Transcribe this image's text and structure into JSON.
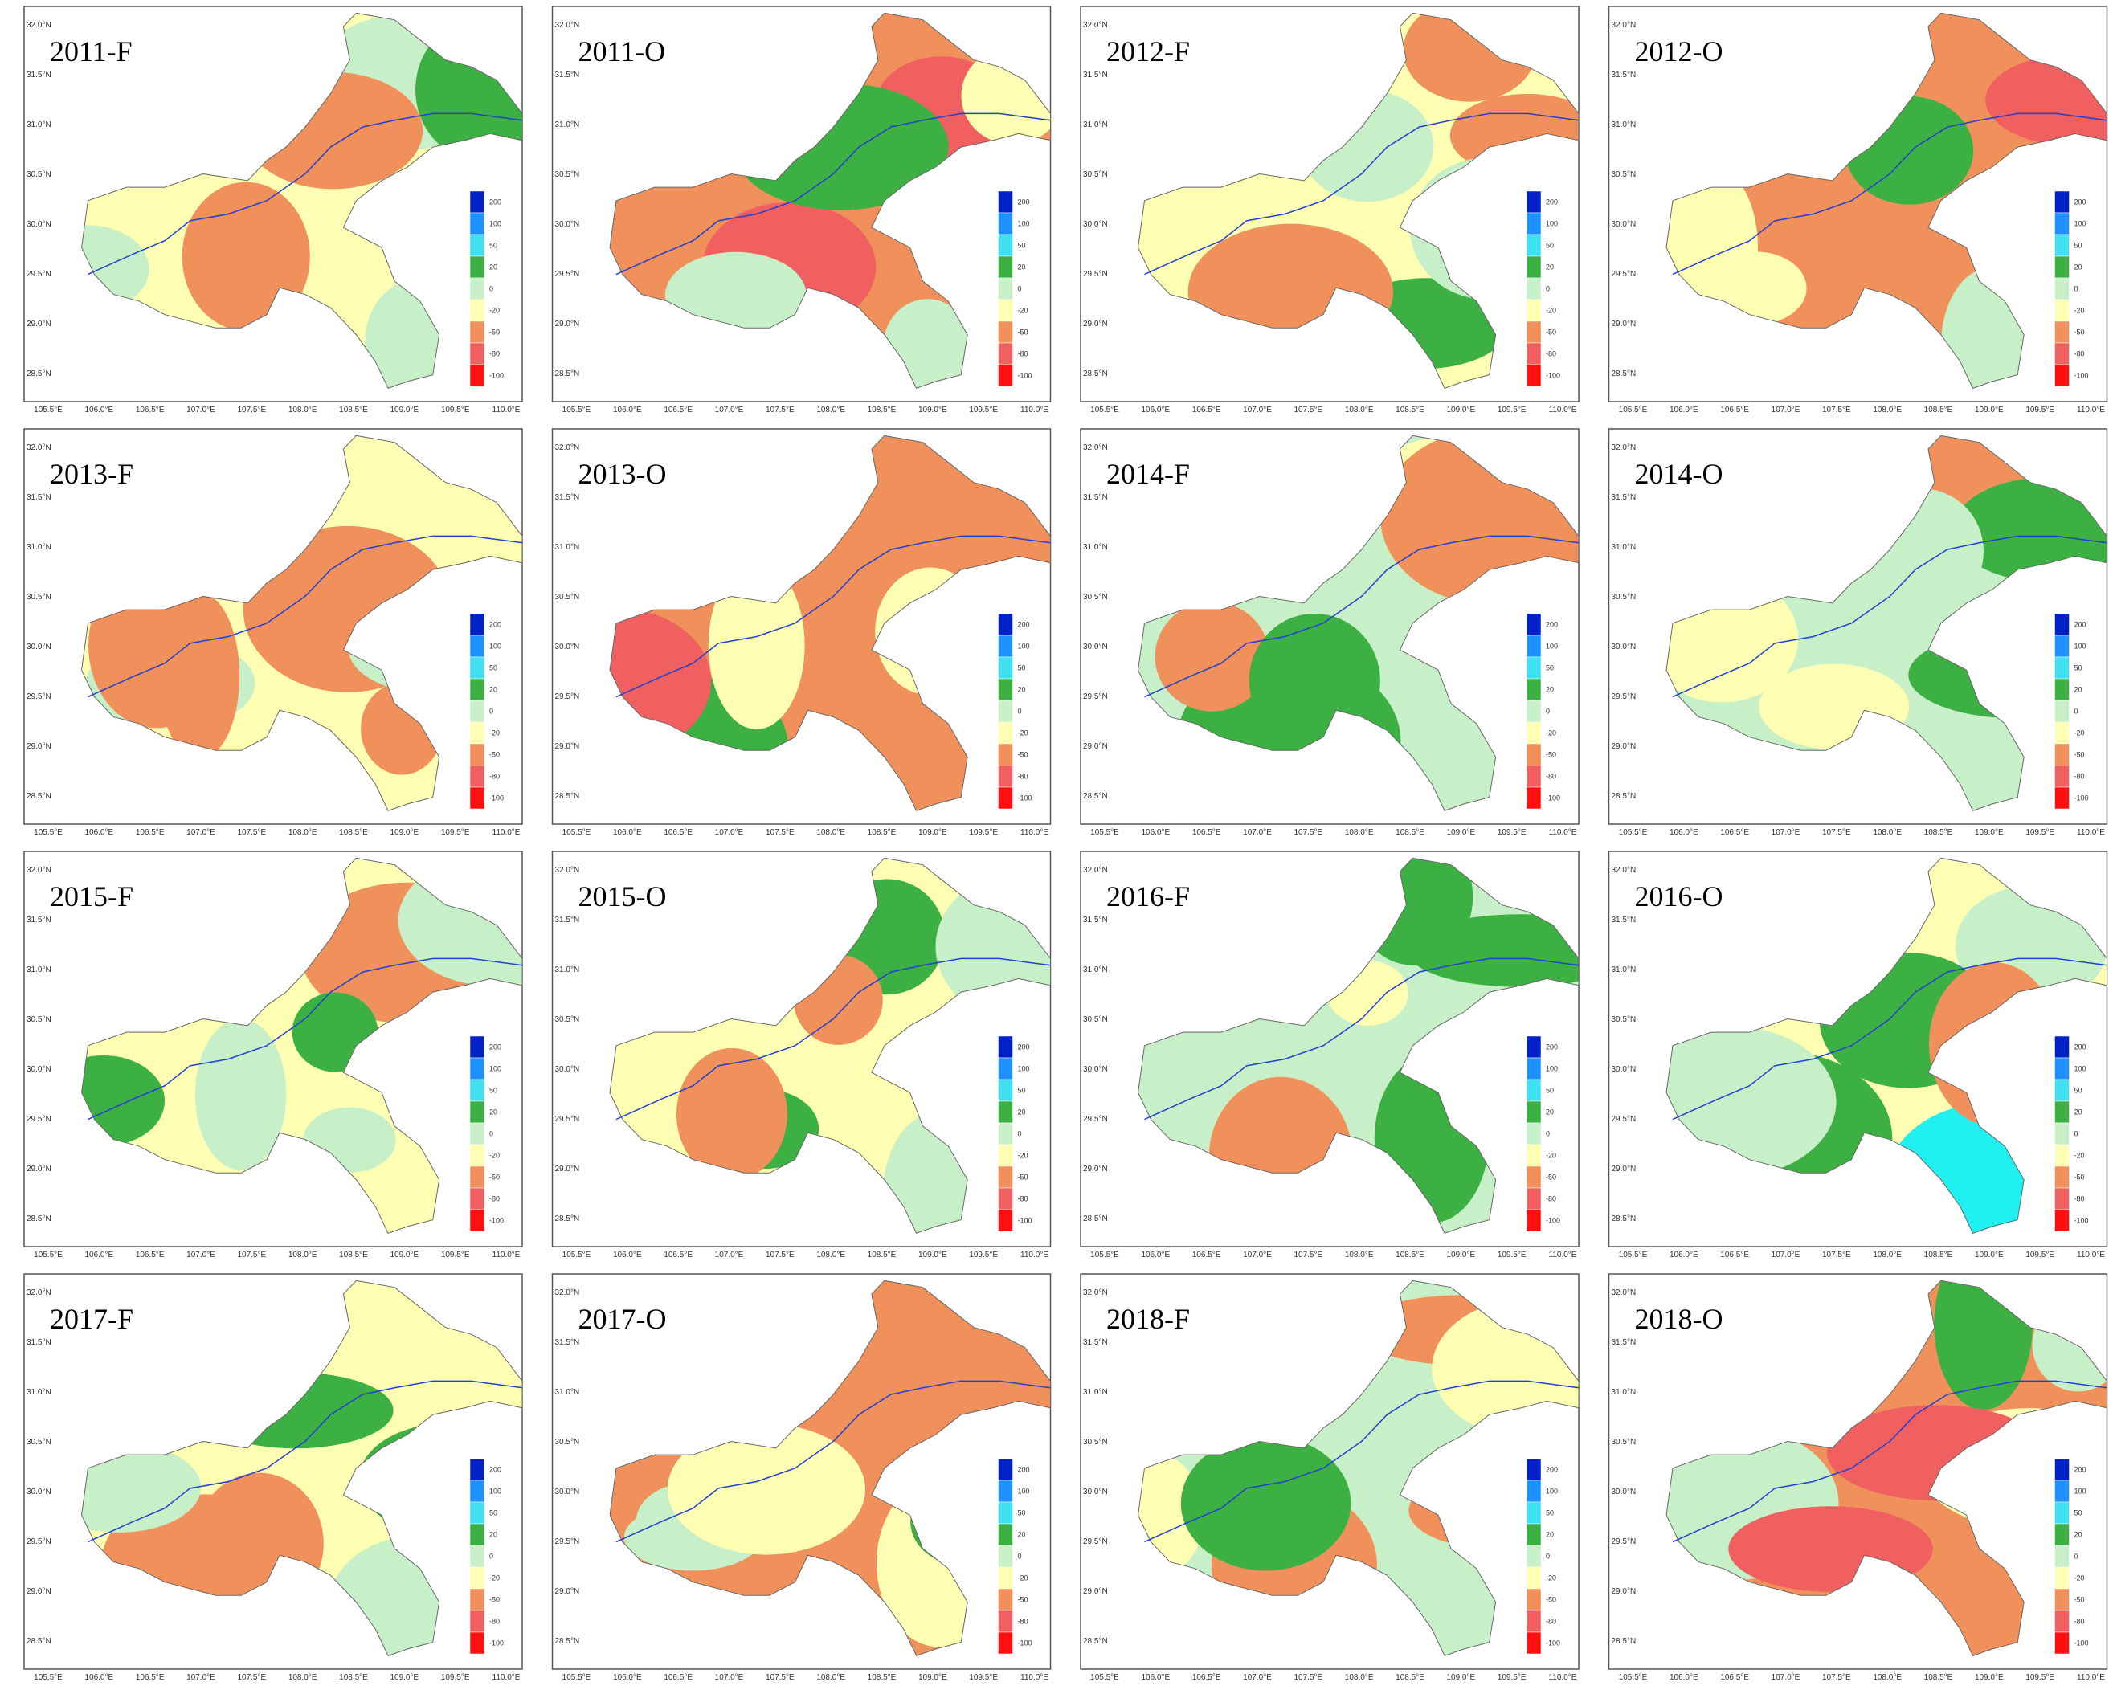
{
  "panels": [
    {
      "title": "2011-F"
    },
    {
      "title": "2011-O"
    },
    {
      "title": "2012-F"
    },
    {
      "title": "2012-O"
    },
    {
      "title": "2013-F"
    },
    {
      "title": "2013-O"
    },
    {
      "title": "2014-F"
    },
    {
      "title": "2014-O"
    },
    {
      "title": "2015-F"
    },
    {
      "title": "2015-O"
    },
    {
      "title": "2016-F"
    },
    {
      "title": "2016-O"
    },
    {
      "title": "2017-F"
    },
    {
      "title": "2017-O"
    },
    {
      "title": "2018-F"
    },
    {
      "title": "2018-O"
    }
  ],
  "lat_labels": [
    "32.0°N",
    "31.5°N",
    "31.0°N",
    "30.5°N",
    "30.0°N",
    "29.5°N",
    "29.0°N",
    "28.5°N"
  ],
  "lon_labels": [
    "105.5°E",
    "106.0°E",
    "106.5°E",
    "107.0°E",
    "107.5°E",
    "108.0°E",
    "108.5°E",
    "109.0°E",
    "109.5°E",
    "110.0°E"
  ],
  "legend": {
    "labels": [
      "200",
      "100",
      "50",
      "20",
      "0",
      "-20",
      "-50",
      "-80",
      "-100"
    ],
    "colors": [
      "#0020c8",
      "#1e90ff",
      "#40e0f0",
      "#3cb043",
      "#c8f0c8",
      "#ffffb4",
      "#f0905a",
      "#f06060",
      "#ff1010"
    ]
  }
}
